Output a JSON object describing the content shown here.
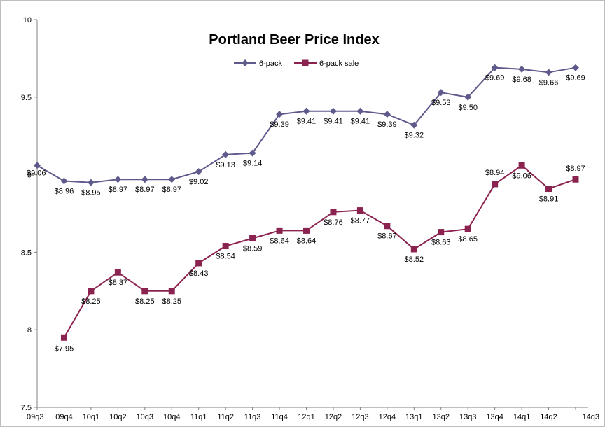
{
  "chart_data": {
    "type": "line",
    "title": "Portland Beer Price Index",
    "xlabel": "",
    "ylabel": "",
    "ylim": [
      7.5,
      10
    ],
    "yticks": [
      "7.5",
      "8",
      "8.5",
      "9",
      "9.5",
      "10"
    ],
    "grid": false,
    "legend_position": "top-center",
    "categories": [
      "09q3",
      "09q4",
      "10q1",
      "10q2",
      "10q3",
      "10q4",
      "11q1",
      "11q2",
      "11q3",
      "11q4",
      "12q1",
      "12q2",
      "12q3",
      "12q4",
      "13q1",
      "13q2",
      "13q3",
      "13q4",
      "14q1",
      "14q2",
      "14q3"
    ],
    "series": [
      {
        "name": "6-pack",
        "color": "#5f5a8c",
        "marker": "diamond",
        "values": [
          9.06,
          8.96,
          8.95,
          8.97,
          8.97,
          8.97,
          9.02,
          9.13,
          9.14,
          9.39,
          9.41,
          9.41,
          9.41,
          9.39,
          9.32,
          9.53,
          9.5,
          9.69,
          9.68,
          9.66,
          9.69
        ],
        "labels": [
          "$9.06",
          "$8.96",
          "$8.95",
          "$8.97",
          "$8.97",
          "$8.97",
          "$9.02",
          "$9.13",
          "$9.14",
          "$9.39",
          "$9.41",
          "$9.41",
          "$9.41",
          "$9.39",
          "$9.32",
          "$9.53",
          "$9.50",
          "$9.69",
          "$9.68",
          "$9.66",
          "$9.69"
        ]
      },
      {
        "name": "6-pack sale",
        "color": "#8b2350",
        "marker": "square",
        "values": [
          null,
          7.95,
          8.25,
          8.37,
          8.25,
          8.25,
          8.43,
          8.54,
          8.59,
          8.64,
          8.64,
          8.76,
          8.77,
          8.67,
          8.52,
          8.63,
          8.65,
          8.94,
          9.06,
          8.91,
          8.97
        ],
        "labels": [
          null,
          "$7.95",
          "$8.25",
          "$8.37",
          "$8.25",
          "$8.25",
          "$8.43",
          "$8.54",
          "$8.59",
          "$8.64",
          "$8.64",
          "$8.76",
          "$8.77",
          "$8.67",
          "$8.52",
          "$8.63",
          "$8.65",
          "$8.94",
          "$9.06",
          "$8.91",
          "$8.97"
        ]
      }
    ]
  }
}
